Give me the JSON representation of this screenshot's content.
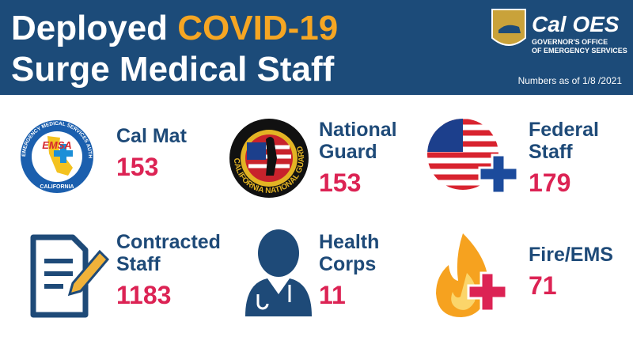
{
  "header": {
    "title_line1": "Deployed",
    "title_highlight": "COVID-19",
    "title_line2": "Surge Medical Staff",
    "logo_name": "Cal OES",
    "logo_subtitle_1": "GOVERNOR'S OFFICE",
    "logo_subtitle_2": "OF EMERGENCY SERVICES",
    "as_of": "Numbers as of 1/8 /2021"
  },
  "icons": {
    "emsa": "EMSA",
    "emsa_ring": "EMERGENCY MEDICAL SERVICES AUTHORITY",
    "emsa_state": "CALIFORNIA",
    "guard_ring": "CALIFORNIA NATIONAL GUARD"
  },
  "items": [
    {
      "label": [
        "Cal Mat"
      ],
      "value": 153
    },
    {
      "label": [
        "National",
        "Guard"
      ],
      "value": 153
    },
    {
      "label": [
        "Federal",
        "Staff"
      ],
      "value": 179
    },
    {
      "label": [
        "Contracted",
        "Staff"
      ],
      "value": 1183
    },
    {
      "label": [
        "Health",
        "Corps"
      ],
      "value": 11
    },
    {
      "label": [
        "Fire/EMS"
      ],
      "value": 71
    }
  ]
}
